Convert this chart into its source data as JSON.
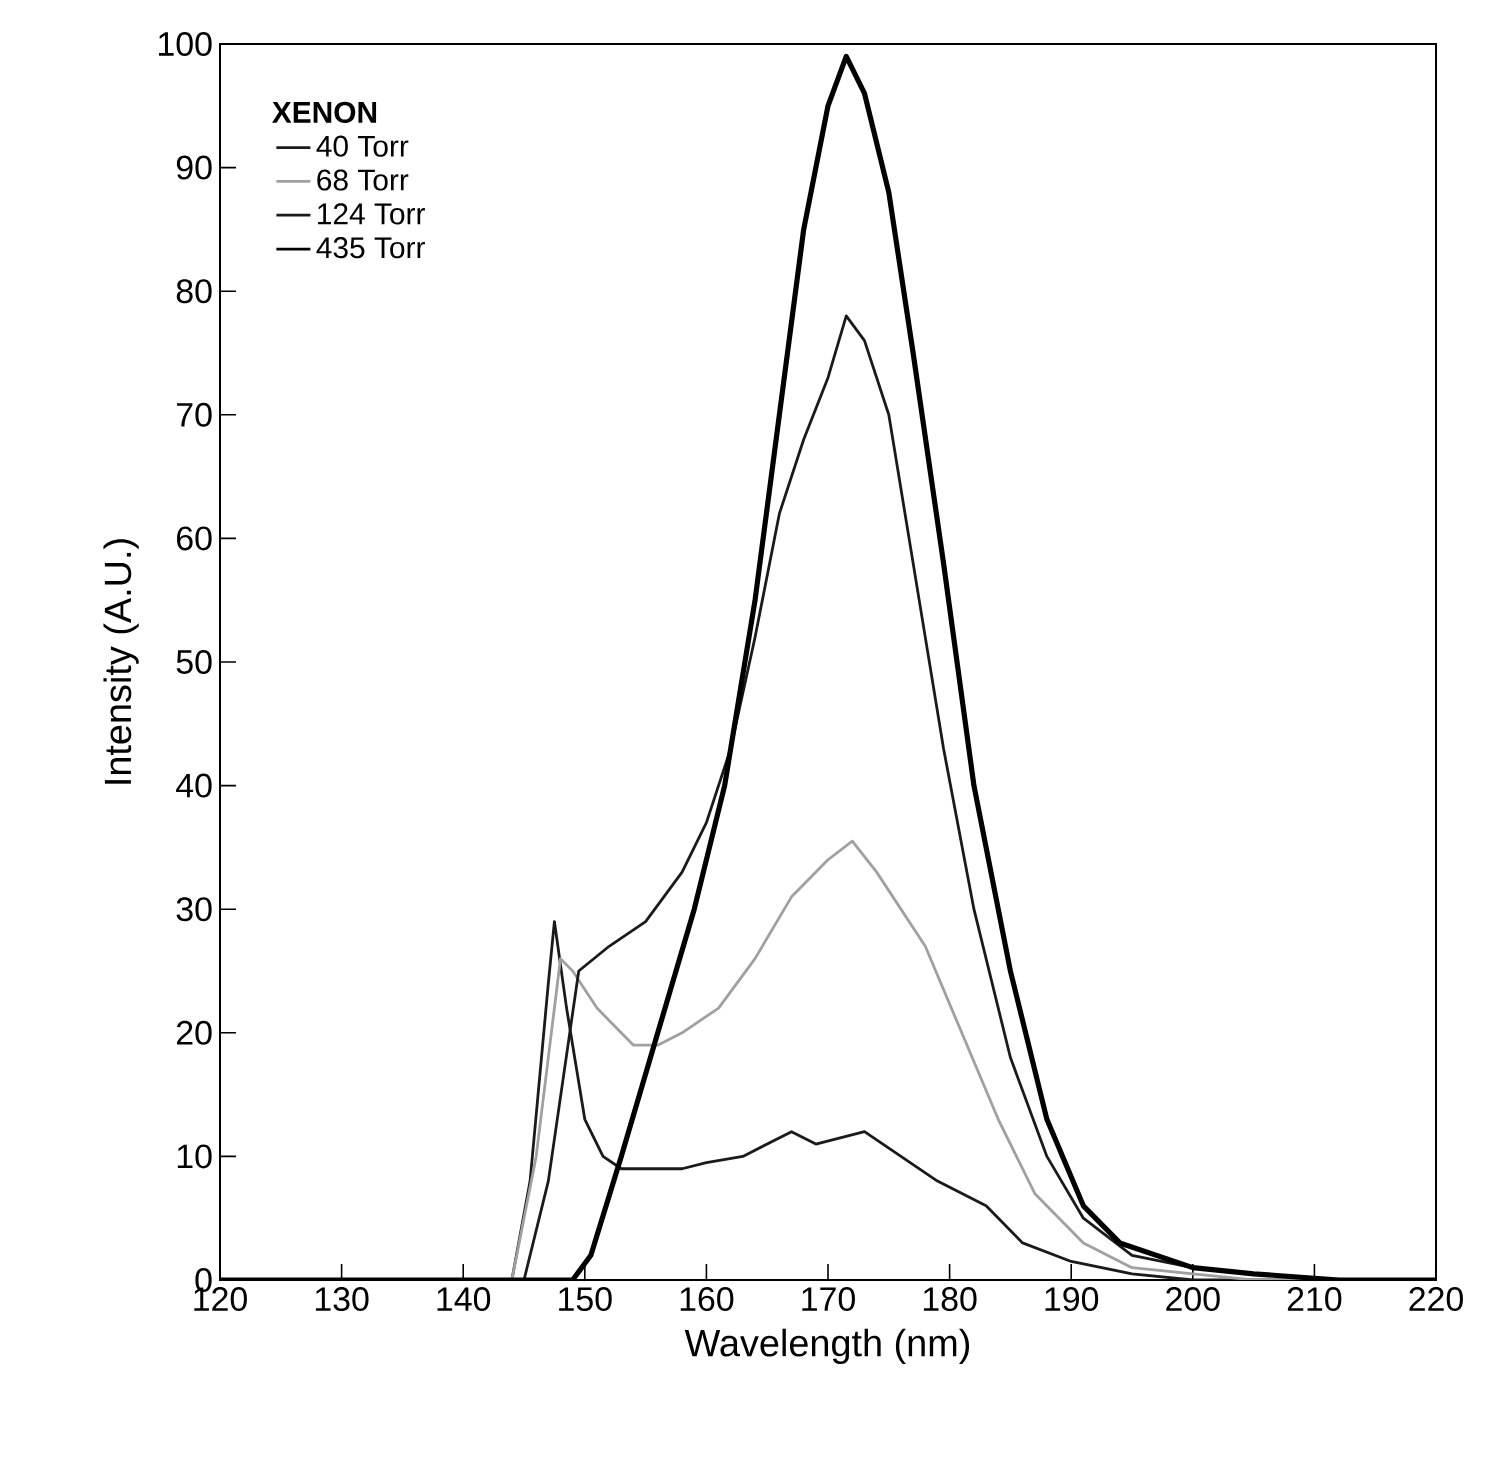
{
  "chart_data": {
    "type": "line",
    "xlabel": "Wavelength (nm)",
    "ylabel": "Intensity (A.U.)",
    "legend_title": "XENON",
    "legend": "top left",
    "grid": false,
    "marker": "none",
    "line_style": "solid",
    "xlim": [
      120,
      220
    ],
    "ylim": [
      0,
      100
    ],
    "xticks": [
      120,
      130,
      140,
      150,
      160,
      170,
      180,
      190,
      200,
      210,
      220
    ],
    "yticks": [
      0,
      10,
      20,
      30,
      40,
      50,
      60,
      70,
      80,
      90,
      100
    ],
    "series": [
      {
        "name": "40   Torr",
        "color": "#1a1a1a",
        "x": [
          120,
          144,
          145.5,
          147,
          147.5,
          148.5,
          150,
          151.5,
          153,
          155,
          158,
          160,
          163,
          165,
          167,
          169,
          171,
          173,
          176,
          179,
          183,
          186,
          190,
          195,
          200,
          210,
          220
        ],
        "values": [
          0,
          0,
          8,
          24,
          29,
          22,
          13,
          10,
          9,
          9,
          9,
          9.5,
          10,
          11,
          12,
          11,
          11.5,
          12,
          10,
          8,
          6,
          3,
          1.5,
          0.5,
          0,
          0,
          0
        ]
      },
      {
        "name": "68   Torr",
        "color": "#a0a0a0",
        "x": [
          120,
          144,
          146,
          148,
          149,
          151,
          154,
          156,
          158,
          161,
          164,
          167,
          170,
          172,
          174,
          178,
          181,
          184,
          187,
          191,
          195,
          200,
          205,
          220
        ],
        "values": [
          0,
          0,
          10,
          26,
          25,
          22,
          19,
          19,
          20,
          22,
          26,
          31,
          34,
          35.5,
          33,
          27,
          20,
          13,
          7,
          3,
          1,
          0.5,
          0,
          0
        ]
      },
      {
        "name": "124 Torr",
        "color": "#1a1a1a",
        "x": [
          120,
          145,
          147,
          149.5,
          152,
          155,
          158,
          160,
          162,
          164,
          166,
          168,
          170,
          171.5,
          173,
          175,
          177,
          179.5,
          182,
          185,
          188,
          191,
          195,
          200,
          205,
          212,
          220
        ],
        "values": [
          0,
          0,
          8,
          25,
          27,
          29,
          33,
          37,
          43,
          52,
          62,
          68,
          73,
          78,
          76,
          70,
          58,
          43,
          30,
          18,
          10,
          5,
          2,
          1,
          0.5,
          0,
          0
        ]
      },
      {
        "name": "435 Torr",
        "color": "#000000",
        "x": [
          120,
          149,
          150.5,
          153,
          156,
          159,
          161.5,
          164,
          166,
          168,
          170,
          171.5,
          173,
          175,
          177,
          179.5,
          182,
          185,
          188,
          191,
          194,
          200,
          205,
          212,
          220
        ],
        "values": [
          0,
          0,
          2,
          10,
          20,
          30,
          40,
          55,
          70,
          85,
          95,
          99,
          96,
          88,
          75,
          58,
          40,
          25,
          13,
          6,
          3,
          1,
          0.5,
          0,
          0
        ]
      }
    ]
  }
}
